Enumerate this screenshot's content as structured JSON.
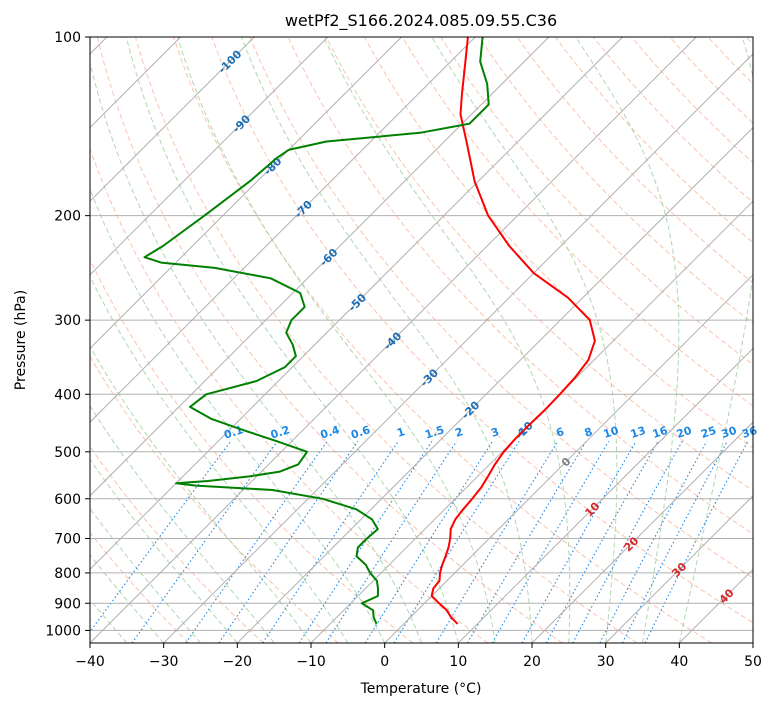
{
  "chart_data": {
    "type": "line",
    "title": "wetPf2_S166.2024.085.09.55.C36",
    "xlabel": "Temperature (°C)",
    "ylabel": "Pressure (hPa)",
    "xlim": [
      -40,
      50
    ],
    "ylim": [
      1050,
      100
    ],
    "y_scale": "log",
    "skew": "skew-T log-p",
    "x_ticks": [
      -40,
      -30,
      -20,
      -10,
      0,
      10,
      20,
      30,
      40,
      50
    ],
    "y_ticks": [
      100,
      200,
      300,
      400,
      500,
      600,
      700,
      800,
      900,
      1000
    ],
    "grid": true,
    "colors": {
      "temperature": "#ff0000",
      "dewpoint": "#008000",
      "isotherm": "#b0b0b0",
      "dry_adiabat": "#f4a582",
      "moist_adiabat": "#a6d4a6",
      "mixing_ratio": "#1e88e5",
      "isotherm_label": "#1f6fb5",
      "moist_label": "#d62728",
      "zero_label": "#808080"
    },
    "isotherm_labels": [
      "-100",
      "-90",
      "-80",
      "-70",
      "-60",
      "-50",
      "-40",
      "-30",
      "-20",
      "-10",
      "0",
      "10",
      "20",
      "30",
      "40"
    ],
    "mixing_ratio_labels": [
      "0.1",
      "0.2",
      "0.4",
      "0.6",
      "1",
      "1.5",
      "2",
      "3",
      "4",
      "6",
      "8",
      "10",
      "13",
      "16",
      "20",
      "25",
      "30",
      "36"
    ],
    "series": [
      {
        "points": [
          [
            975,
            7.3
          ],
          [
            950,
            5.5
          ],
          [
            925,
            4.0
          ],
          [
            900,
            2.0
          ],
          [
            875,
            0.0
          ],
          [
            850,
            -0.8
          ],
          [
            825,
            -1.0
          ],
          [
            800,
            -2.0
          ],
          [
            775,
            -2.8
          ],
          [
            750,
            -3.5
          ],
          [
            725,
            -4.3
          ],
          [
            700,
            -5.3
          ],
          [
            675,
            -6.5
          ],
          [
            650,
            -7.2
          ],
          [
            625,
            -7.5
          ],
          [
            600,
            -7.7
          ],
          [
            575,
            -8.0
          ],
          [
            550,
            -8.6
          ],
          [
            525,
            -9.3
          ],
          [
            500,
            -9.8
          ],
          [
            475,
            -10.0
          ],
          [
            450,
            -10.0
          ],
          [
            425,
            -9.9
          ],
          [
            400,
            -10.0
          ],
          [
            375,
            -10.2
          ],
          [
            350,
            -10.8
          ],
          [
            325,
            -12.5
          ],
          [
            300,
            -16.0
          ],
          [
            275,
            -22.0
          ],
          [
            250,
            -30.0
          ],
          [
            225,
            -37.0
          ],
          [
            200,
            -44.0
          ],
          [
            175,
            -50.5
          ],
          [
            150,
            -57.0
          ],
          [
            135,
            -61.5
          ],
          [
            125,
            -64.0
          ],
          [
            110,
            -68.0
          ],
          [
            100,
            -71.0
          ]
        ]
      },
      {
        "points": [
          [
            975,
            -3.7
          ],
          [
            950,
            -5.0
          ],
          [
            925,
            -6.0
          ],
          [
            900,
            -8.5
          ],
          [
            875,
            -7.3
          ],
          [
            850,
            -8.3
          ],
          [
            825,
            -9.5
          ],
          [
            800,
            -11.5
          ],
          [
            775,
            -13.2
          ],
          [
            750,
            -15.6
          ],
          [
            725,
            -16.6
          ],
          [
            700,
            -16.6
          ],
          [
            675,
            -16.4
          ],
          [
            650,
            -18.5
          ],
          [
            625,
            -22.0
          ],
          [
            600,
            -28.0
          ],
          [
            580,
            -36.0
          ],
          [
            570,
            -47.0
          ],
          [
            565,
            -50.0
          ],
          [
            560,
            -46.0
          ],
          [
            550,
            -41.0
          ],
          [
            540,
            -37.5
          ],
          [
            525,
            -36.0
          ],
          [
            500,
            -36.5
          ],
          [
            480,
            -42.0
          ],
          [
            460,
            -48.0
          ],
          [
            440,
            -54.0
          ],
          [
            420,
            -58.5
          ],
          [
            400,
            -58.0
          ],
          [
            380,
            -53.0
          ],
          [
            360,
            -51.0
          ],
          [
            345,
            -51.0
          ],
          [
            330,
            -53.0
          ],
          [
            315,
            -55.5
          ],
          [
            300,
            -56.5
          ],
          [
            285,
            -56.5
          ],
          [
            270,
            -59.0
          ],
          [
            255,
            -65.0
          ],
          [
            245,
            -74.0
          ],
          [
            240,
            -82.0
          ],
          [
            235,
            -85.0
          ],
          [
            225,
            -84.0
          ],
          [
            200,
            -82.5
          ],
          [
            175,
            -81.0
          ],
          [
            160,
            -80.5
          ],
          [
            155,
            -80.0
          ],
          [
            150,
            -76.0
          ],
          [
            145,
            -64.5
          ],
          [
            140,
            -59.0
          ],
          [
            130,
            -59.0
          ],
          [
            120,
            -62.0
          ],
          [
            110,
            -66.0
          ],
          [
            100,
            -69.0
          ]
        ]
      }
    ]
  }
}
